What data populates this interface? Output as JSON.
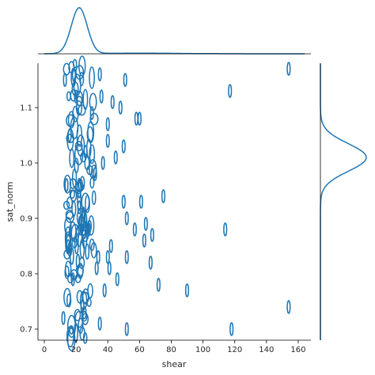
{
  "chart_data": {
    "type": "scatter",
    "kind": "joint-kde",
    "color": "#1f77b4",
    "xlabel": "shear",
    "ylabel": "sat_norm",
    "xlim": [
      -4,
      168
    ],
    "ylim": [
      0.68,
      1.18
    ],
    "xticks": [
      0,
      20,
      40,
      60,
      80,
      100,
      120,
      140,
      160
    ],
    "yticks": [
      0.7,
      0.8,
      0.9,
      1.0,
      1.1
    ],
    "xtick_labels": [
      "0",
      "20",
      "40",
      "60",
      "80",
      "100",
      "120",
      "140",
      "160"
    ],
    "ytick_labels": [
      "0.7",
      "0.8",
      "0.9",
      "1.0",
      "1.1"
    ],
    "grid": false,
    "contour_points": [
      {
        "x": 13,
        "y": 1.15
      },
      {
        "x": 12,
        "y": 0.72
      },
      {
        "x": 14,
        "y": 0.96
      },
      {
        "x": 15,
        "y": 0.85
      },
      {
        "x": 16,
        "y": 1.05
      },
      {
        "x": 18,
        "y": 0.79
      },
      {
        "x": 20,
        "y": 1.12
      },
      {
        "x": 22,
        "y": 0.92
      },
      {
        "x": 24,
        "y": 0.74
      },
      {
        "x": 26,
        "y": 1.02
      },
      {
        "x": 28,
        "y": 0.88
      },
      {
        "x": 30,
        "y": 1.09
      },
      {
        "x": 32,
        "y": 0.98
      },
      {
        "x": 33,
        "y": 0.81
      },
      {
        "x": 35,
        "y": 1.16
      },
      {
        "x": 34,
        "y": 0.83
      },
      {
        "x": 35,
        "y": 0.71
      },
      {
        "x": 36,
        "y": 1.12
      },
      {
        "x": 37,
        "y": 1.0
      },
      {
        "x": 38,
        "y": 0.77
      },
      {
        "x": 40,
        "y": 1.04
      },
      {
        "x": 40,
        "y": 1.07
      },
      {
        "x": 40,
        "y": 0.83
      },
      {
        "x": 41,
        "y": 0.81
      },
      {
        "x": 42,
        "y": 0.85
      },
      {
        "x": 43,
        "y": 1.11
      },
      {
        "x": 45,
        "y": 1.01
      },
      {
        "x": 46,
        "y": 0.79
      },
      {
        "x": 48,
        "y": 1.1
      },
      {
        "x": 50,
        "y": 1.03
      },
      {
        "x": 50,
        "y": 0.93
      },
      {
        "x": 51,
        "y": 1.15
      },
      {
        "x": 52,
        "y": 0.9
      },
      {
        "x": 52,
        "y": 0.83
      },
      {
        "x": 52,
        "y": 0.7
      },
      {
        "x": 57,
        "y": 0.88
      },
      {
        "x": 58,
        "y": 1.08
      },
      {
        "x": 60,
        "y": 1.08
      },
      {
        "x": 61,
        "y": 0.93
      },
      {
        "x": 63,
        "y": 0.86
      },
      {
        "x": 64,
        "y": 0.89
      },
      {
        "x": 67,
        "y": 0.82
      },
      {
        "x": 68,
        "y": 0.87
      },
      {
        "x": 72,
        "y": 0.78
      },
      {
        "x": 75,
        "y": 0.94
      },
      {
        "x": 90,
        "y": 0.77
      },
      {
        "x": 114,
        "y": 0.88
      },
      {
        "x": 117,
        "y": 1.13
      },
      {
        "x": 118,
        "y": 0.7
      },
      {
        "x": 154,
        "y": 0.74
      },
      {
        "x": 154,
        "y": 1.17
      }
    ],
    "dense_cluster": {
      "x_range": [
        14,
        32
      ],
      "y_range": [
        0.68,
        1.18
      ]
    },
    "marginal_x_density": {
      "peak": 22,
      "spread": 5
    },
    "marginal_y_density": {
      "peak": 1.01,
      "spread": 0.025
    }
  }
}
